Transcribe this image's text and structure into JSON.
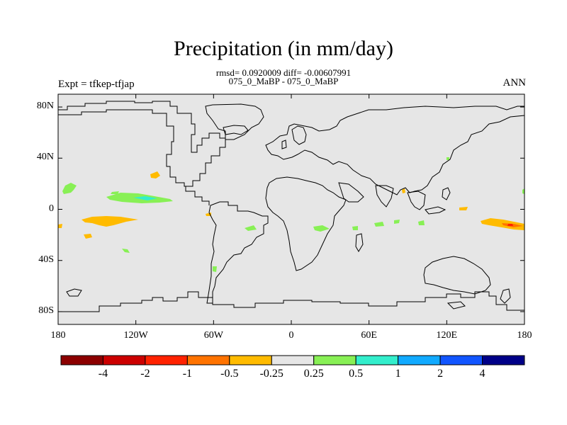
{
  "title": "Precipitation (in mm/day)",
  "stats": "rmsd= 0.0920009 diff= -0.00607991",
  "comparison": "075_0_MaBP - 075_0_MaBP",
  "experiment": "Expt = tfkep-tfjap",
  "season": "ANN",
  "map": {
    "projection": "cylindrical-equidistant",
    "lon_range": [
      -180,
      180
    ],
    "lat_range": [
      -90,
      90
    ],
    "lat_ticks": [
      {
        "value": 80,
        "label": "80N"
      },
      {
        "value": 40,
        "label": "40N"
      },
      {
        "value": 0,
        "label": "0"
      },
      {
        "value": -40,
        "label": "40S"
      },
      {
        "value": -80,
        "label": "80S"
      }
    ],
    "lon_ticks": [
      {
        "value": -180,
        "label": "180"
      },
      {
        "value": -120,
        "label": "120W"
      },
      {
        "value": -60,
        "label": "60W"
      },
      {
        "value": 0,
        "label": "0"
      },
      {
        "value": 60,
        "label": "60E"
      },
      {
        "value": 120,
        "label": "120E"
      },
      {
        "value": 180,
        "label": "180"
      }
    ],
    "background_color": "#e6e6e6",
    "coastline_color": "#000000"
  },
  "colorbar": {
    "colors": [
      "#8c0000",
      "#cc0000",
      "#ff2200",
      "#ff7300",
      "#ffbb00",
      "#e6e6e6",
      "#88f055",
      "#33eecc",
      "#11aaff",
      "#1155ff",
      "#000088"
    ],
    "labels": [
      "-4",
      "-2",
      "-1",
      "-0.5",
      "-0.25",
      "0.25",
      "0.5",
      "1",
      "2",
      "4"
    ]
  },
  "anomalies": [
    {
      "lon": -173,
      "lat": 16,
      "level": "0.5",
      "color": "#88f055"
    },
    {
      "lon": -122,
      "lat": 8,
      "level": "0.5",
      "color": "#88f055"
    },
    {
      "lon": -118,
      "lat": 7,
      "level": "1",
      "color": "#33eecc"
    },
    {
      "lon": -142,
      "lat": -8,
      "level": "-0.25",
      "color": "#ffbb00"
    },
    {
      "lon": -103,
      "lat": 24,
      "level": "-0.25",
      "color": "#ffbb00"
    },
    {
      "lon": 12,
      "lat": -13,
      "level": "0.5",
      "color": "#88f055"
    },
    {
      "lon": 163,
      "lat": -11,
      "level": "-0.25",
      "color": "#ffbb00"
    },
    {
      "lon": 168,
      "lat": -12,
      "level": "-0.5",
      "color": "#ff7300"
    },
    {
      "lon": 170,
      "lat": -12,
      "level": "-1",
      "color": "#ff2200"
    }
  ]
}
